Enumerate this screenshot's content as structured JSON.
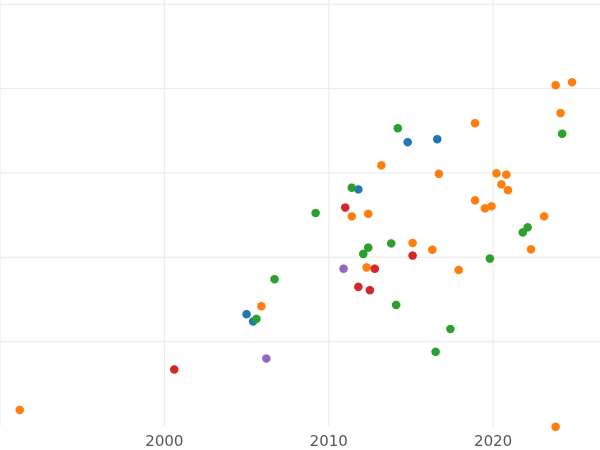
{
  "chart_data": {
    "type": "scatter",
    "title": "",
    "xlabel": "",
    "ylabel": "",
    "xlim": [
      1990,
      2026.5
    ],
    "ylim": [
      0,
      1.01
    ],
    "grid": true,
    "x_ticks": [
      {
        "value": 2000,
        "label": "2000"
      },
      {
        "value": 2010,
        "label": "2010"
      },
      {
        "value": 2020,
        "label": "2020"
      }
    ],
    "y_gridlines": [
      0.2,
      0.4,
      0.6,
      0.8,
      1.0
    ],
    "x_minor_gridlines": [
      1990
    ],
    "series": [
      {
        "color": "#1f77b4",
        "points": [
          {
            "x": 2005.0,
            "y": 0.265
          },
          {
            "x": 2005.4,
            "y": 0.248
          },
          {
            "x": 2011.8,
            "y": 0.561
          },
          {
            "x": 2014.8,
            "y": 0.673
          },
          {
            "x": 2016.6,
            "y": 0.68
          }
        ]
      },
      {
        "color": "#ff7f0e",
        "points": [
          {
            "x": 1991.2,
            "y": 0.038
          },
          {
            "x": 2005.9,
            "y": 0.284
          },
          {
            "x": 2011.4,
            "y": 0.497
          },
          {
            "x": 2012.3,
            "y": 0.376
          },
          {
            "x": 2012.4,
            "y": 0.503
          },
          {
            "x": 2013.2,
            "y": 0.618
          },
          {
            "x": 2015.1,
            "y": 0.434
          },
          {
            "x": 2016.3,
            "y": 0.418
          },
          {
            "x": 2016.7,
            "y": 0.598
          },
          {
            "x": 2017.9,
            "y": 0.37
          },
          {
            "x": 2018.9,
            "y": 0.718
          },
          {
            "x": 2018.9,
            "y": 0.535
          },
          {
            "x": 2019.5,
            "y": 0.516
          },
          {
            "x": 2019.9,
            "y": 0.521
          },
          {
            "x": 2020.2,
            "y": 0.599
          },
          {
            "x": 2020.5,
            "y": 0.573
          },
          {
            "x": 2020.8,
            "y": 0.596
          },
          {
            "x": 2020.9,
            "y": 0.559
          },
          {
            "x": 2022.3,
            "y": 0.419
          },
          {
            "x": 2023.1,
            "y": 0.497
          },
          {
            "x": 2023.8,
            "y": 0.808
          },
          {
            "x": 2024.1,
            "y": 0.742
          },
          {
            "x": 2024.8,
            "y": 0.815
          },
          {
            "x": 2023.8,
            "y": -0.002
          }
        ]
      },
      {
        "color": "#2ca02c",
        "points": [
          {
            "x": 2005.6,
            "y": 0.254
          },
          {
            "x": 2006.7,
            "y": 0.348
          },
          {
            "x": 2009.2,
            "y": 0.505
          },
          {
            "x": 2011.4,
            "y": 0.565
          },
          {
            "x": 2012.1,
            "y": 0.408
          },
          {
            "x": 2012.4,
            "y": 0.423
          },
          {
            "x": 2013.8,
            "y": 0.433
          },
          {
            "x": 2014.1,
            "y": 0.287
          },
          {
            "x": 2014.2,
            "y": 0.706
          },
          {
            "x": 2016.5,
            "y": 0.176
          },
          {
            "x": 2017.4,
            "y": 0.23
          },
          {
            "x": 2019.8,
            "y": 0.397
          },
          {
            "x": 2021.8,
            "y": 0.459
          },
          {
            "x": 2022.1,
            "y": 0.471
          },
          {
            "x": 2024.2,
            "y": 0.693
          }
        ]
      },
      {
        "color": "#d62728",
        "points": [
          {
            "x": 2000.6,
            "y": 0.134
          },
          {
            "x": 2011.0,
            "y": 0.518
          },
          {
            "x": 2011.8,
            "y": 0.33
          },
          {
            "x": 2012.5,
            "y": 0.322
          },
          {
            "x": 2012.8,
            "y": 0.373
          },
          {
            "x": 2015.1,
            "y": 0.404
          }
        ]
      },
      {
        "color": "#9467bd",
        "points": [
          {
            "x": 2006.2,
            "y": 0.16
          },
          {
            "x": 2010.9,
            "y": 0.373
          }
        ]
      }
    ]
  }
}
